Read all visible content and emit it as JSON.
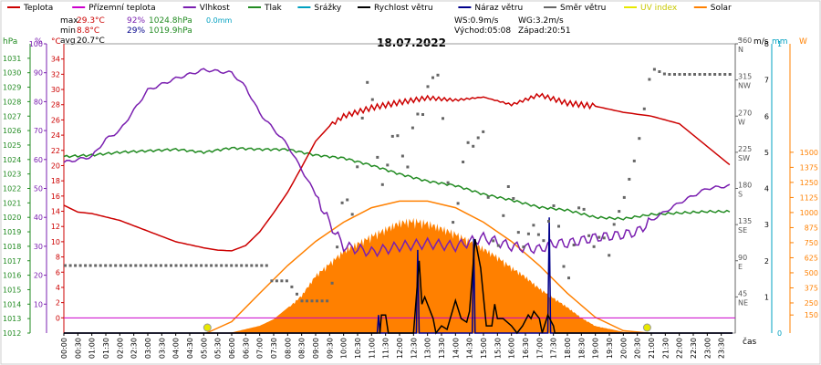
{
  "legend": [
    {
      "label": "Teplota",
      "color": "#cc0000"
    },
    {
      "label": "Přízemní teplota",
      "color": "#cc00cc"
    },
    {
      "label": "Vlhkost",
      "color": "#7a1fb0"
    },
    {
      "label": "Tlak",
      "color": "#228b22"
    },
    {
      "label": "Srážky",
      "color": "#00a0c0"
    },
    {
      "label": "Rychlost větru",
      "color": "#000000"
    },
    {
      "label": "Náraz větru",
      "color": "#00008b"
    },
    {
      "label": "Směr větru",
      "color": "#666666"
    },
    {
      "label": "UV index",
      "color": "#e8e800"
    },
    {
      "label": "Solar",
      "color": "#ff8000"
    }
  ],
  "stats": {
    "max_label": "max",
    "max_temp": "29.3°C",
    "max_hum": "92%",
    "max_press": "1024.8hPa",
    "max_rain": "0.0mm",
    "min_label": "min",
    "min_temp": "8.8°C",
    "min_hum": "29%",
    "min_press": "1019.9hPa",
    "avg_label": "avg",
    "avg_temp": "20.7°C"
  },
  "wind_info": {
    "ws": "WS:0.9m/s",
    "wg": "WG:3.2m/s",
    "sunrise": "Východ:05:08",
    "sunset": "Západ:20:51"
  },
  "date": "18.07.2022",
  "axis_units": {
    "hpa": "hPa",
    "pct": "%",
    "degc": "°C",
    "deg": "°",
    "ms": "m/s",
    "mm": "mm",
    "w": "W",
    "cas": "čas"
  },
  "colors": {
    "temp": "#cc0000",
    "dew": "#cc00cc",
    "hum": "#7a1fb0",
    "press": "#228b22",
    "rain": "#00a0c0",
    "wind": "#000000",
    "gust": "#00008b",
    "dir": "#666666",
    "uv": "#e8e800",
    "solar": "#ff8000",
    "frame": "#888888"
  },
  "chart_data": {
    "type": "line",
    "x_unit": "time of day",
    "x_tick_labels": [
      "00:00",
      "00:30",
      "01:00",
      "01:30",
      "02:00",
      "02:30",
      "03:00",
      "03:30",
      "04:00",
      "04:30",
      "05:00",
      "05:30",
      "06:00",
      "06:30",
      "07:00",
      "07:30",
      "08:00",
      "08:30",
      "09:00",
      "09:30",
      "10:00",
      "10:30",
      "11:00",
      "11:30",
      "12:00",
      "12:30",
      "13:00",
      "13:30",
      "14:00",
      "14:30",
      "15:00",
      "15:30",
      "16:00",
      "16:30",
      "17:00",
      "17:30",
      "18:00",
      "18:30",
      "19:00",
      "19:30",
      "20:00",
      "20:30",
      "21:00",
      "21:30",
      "22:00",
      "22:30",
      "23:00",
      "23:30"
    ],
    "axes": {
      "pressure_hpa": {
        "range": [
          1012,
          1032
        ],
        "ticks": [
          1012,
          1013,
          1014,
          1015,
          1016,
          1017,
          1018,
          1019,
          1020,
          1021,
          1022,
          1023,
          1024,
          1025,
          1026,
          1027,
          1028,
          1029,
          1030,
          1031
        ]
      },
      "humidity_pct": {
        "range": [
          0,
          100
        ],
        "ticks": [
          10,
          20,
          30,
          40,
          50,
          60,
          70,
          80,
          90,
          100
        ]
      },
      "temperature_c": {
        "range": [
          -2,
          36
        ],
        "ticks": [
          0,
          2,
          4,
          6,
          8,
          10,
          12,
          14,
          16,
          18,
          20,
          22,
          24,
          26,
          28,
          30,
          32,
          34
        ]
      },
      "wind_dir_deg": {
        "range": [
          0,
          360
        ],
        "ticks": [
          {
            "v": 45,
            "l": "45",
            "d": "NE"
          },
          {
            "v": 90,
            "l": "90",
            "d": "E"
          },
          {
            "v": 135,
            "l": "135",
            "d": "SE"
          },
          {
            "v": 180,
            "l": "180",
            "d": "S"
          },
          {
            "v": 225,
            "l": "225",
            "d": "SW"
          },
          {
            "v": 270,
            "l": "270",
            "d": "W"
          },
          {
            "v": 315,
            "l": "315",
            "d": "NW"
          },
          {
            "v": 360,
            "l": "360",
            "d": "N"
          }
        ]
      },
      "wind_ms": {
        "range": [
          0,
          8
        ],
        "ticks": [
          1,
          2,
          3,
          4,
          5,
          6,
          7,
          8
        ]
      },
      "rain_mm": {
        "range": [
          0,
          1
        ],
        "ticks": [
          0,
          1
        ]
      },
      "solar_w": {
        "range": [
          0,
          2400
        ],
        "ticks": [
          150,
          250,
          375,
          500,
          625,
          750,
          875,
          1000,
          1125,
          1250,
          1375,
          1500
        ]
      }
    },
    "series": [
      {
        "name": "Teplota",
        "unit": "°C",
        "x": [
          0,
          0.5,
          1,
          2,
          3,
          4,
          5,
          5.5,
          6,
          6.5,
          7,
          7.5,
          8,
          8.5,
          9,
          9.5,
          10,
          11,
          12,
          13,
          14,
          15,
          16,
          17,
          18,
          19,
          20,
          21,
          22,
          23,
          23.9
        ],
        "y": [
          14.8,
          13.9,
          13.7,
          12.8,
          11.4,
          10.0,
          9.2,
          8.9,
          8.8,
          9.5,
          11.3,
          13.8,
          16.5,
          19.8,
          23.2,
          25.2,
          26.5,
          27.6,
          28.3,
          28.9,
          28.6,
          29.0,
          28.0,
          29.3,
          28.2,
          27.8,
          27.0,
          26.5,
          25.5,
          22.5,
          19.8
        ]
      },
      {
        "name": "Přízemní teplota",
        "unit": "°C",
        "x": [
          0,
          23.9
        ],
        "y": [
          0,
          0
        ]
      },
      {
        "name": "Vlhkost",
        "unit": "%",
        "x": [
          0,
          1,
          1.5,
          2,
          3,
          4,
          5,
          6,
          6.5,
          7,
          8,
          9,
          9.5,
          10,
          10.5,
          11,
          12,
          13,
          14,
          15,
          16,
          17,
          17.5,
          18,
          19,
          20,
          20.5,
          21,
          22,
          23,
          23.9
        ],
        "y": [
          59,
          61,
          67,
          70,
          84,
          88,
          91,
          90,
          85,
          76,
          65,
          48,
          38,
          30,
          29,
          28,
          30,
          31,
          30,
          33,
          30,
          29,
          31,
          31,
          33,
          34,
          35,
          39,
          45,
          50,
          51
        ]
      },
      {
        "name": "Tlak",
        "unit": "hPa",
        "x": [
          0,
          1,
          2,
          3,
          4,
          5,
          6,
          7,
          8,
          9,
          10,
          11,
          12,
          13,
          14,
          15,
          16,
          17,
          18,
          19,
          20,
          21,
          22,
          23,
          23.9
        ],
        "y": [
          1024.2,
          1024.3,
          1024.5,
          1024.6,
          1024.7,
          1024.5,
          1024.8,
          1024.7,
          1024.7,
          1024.3,
          1024.1,
          1023.6,
          1023.0,
          1022.5,
          1022.2,
          1021.6,
          1021.2,
          1020.7,
          1020.5,
          1020.0,
          1019.9,
          1020.2,
          1020.3,
          1020.4,
          1020.4
        ]
      },
      {
        "name": "Srážky",
        "unit": "mm",
        "x": [
          0,
          23.9
        ],
        "y": [
          0,
          0
        ]
      },
      {
        "name": "Rychlost větru",
        "unit": "m/s",
        "x": [
          0,
          11.3,
          11.35,
          11.5,
          11.6,
          12.5,
          12.7,
          12.8,
          12.9,
          13.2,
          13.3,
          13.5,
          13.7,
          14,
          14.2,
          14.4,
          14.5,
          14.7,
          14.9,
          15.1,
          15.3,
          15.4,
          15.5,
          15.7,
          16,
          16.2,
          16.4,
          16.6,
          16.7,
          16.8,
          17,
          17.1,
          17.3,
          17.5,
          17.55,
          17.6,
          23.9
        ],
        "y": [
          0,
          0,
          0.5,
          0.5,
          0,
          0,
          2.0,
          0.8,
          1.0,
          0.4,
          0,
          0.2,
          0.1,
          0.9,
          0.4,
          0.3,
          0.6,
          2.6,
          1.8,
          0.2,
          0.2,
          0.8,
          0.4,
          0.4,
          0.2,
          0,
          0.2,
          0.5,
          0.4,
          0.6,
          0.4,
          0,
          0.5,
          0.2,
          0,
          0,
          0
        ]
      },
      {
        "name": "Náraz větru",
        "unit": "m/s",
        "x": [
          0,
          11.2,
          11.25,
          11.3,
          12.6,
          12.65,
          12.7,
          14.6,
          14.65,
          14.7,
          17.3,
          17.35,
          17.4,
          23.9
        ],
        "y": [
          0,
          0,
          0.5,
          0,
          0,
          2.3,
          0,
          0,
          2.6,
          0,
          0,
          3.2,
          0,
          0
        ]
      },
      {
        "name": "Solar",
        "unit": "W",
        "x": [
          0,
          5.5,
          6,
          7,
          7.5,
          8,
          8.5,
          9,
          10,
          11,
          12,
          12.5,
          13,
          14,
          15,
          15.5,
          16,
          16.5,
          17,
          17.5,
          18,
          18.5,
          19,
          20,
          21,
          23.9
        ],
        "y": [
          0,
          0,
          5,
          60,
          115,
          210,
          320,
          490,
          700,
          830,
          945,
          960,
          940,
          850,
          720,
          650,
          560,
          480,
          380,
          300,
          220,
          130,
          60,
          10,
          0,
          0
        ]
      },
      {
        "name": "Solar max",
        "unit": "W",
        "x": [
          5.1,
          6,
          7,
          8,
          9,
          10,
          11,
          12,
          13,
          14,
          15,
          16,
          17,
          18,
          19,
          20,
          20.9
        ],
        "y": [
          0,
          95,
          330,
          560,
          760,
          920,
          1040,
          1095,
          1095,
          1040,
          920,
          760,
          560,
          330,
          130,
          20,
          0
        ]
      },
      {
        "name": "Směr větru",
        "unit": "°",
        "x": [
          0,
          7.3,
          7.4,
          8,
          8.5,
          9.5,
          10,
          10.3,
          10.5,
          11.0,
          11.5,
          12,
          12.3,
          13,
          13.5,
          14,
          14.5,
          15,
          15.2,
          15.5,
          16,
          17,
          17.6,
          18,
          18.5,
          19,
          19.5,
          20,
          20.5,
          21,
          21.5,
          23.9
        ],
        "y": [
          84,
          84,
          65,
          65,
          40,
          40,
          164,
          180,
          240,
          265,
          220,
          235,
          195,
          350,
          240,
          160,
          245,
          215,
          150,
          160,
          130,
          135,
          110,
          122,
          120,
          120,
          120,
          165,
          228,
          330,
          322,
          322
        ]
      }
    ]
  }
}
